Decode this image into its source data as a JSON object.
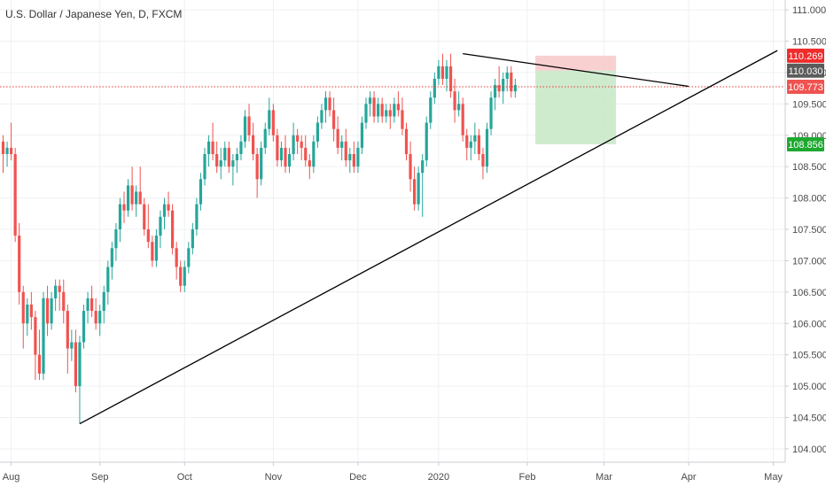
{
  "header": {
    "title": "U.S. Dollar / Japanese Yen, D, FXCM"
  },
  "colors": {
    "up": "#26a69a",
    "down": "#ef5350",
    "grid": "#eef0f3",
    "axis": "#c8ccd3",
    "trendline": "#000000",
    "current_line": "#e53935",
    "stop_zone": "#f8c8c8",
    "target_zone": "#c7e8c6",
    "entry_badge": "#5b5b5b",
    "stop_badge": "#ef2c2c",
    "target_badge": "#1ea830",
    "current_badge": "#ef5350"
  },
  "chart_data": {
    "type": "candlestick",
    "title": "U.S. Dollar / Japanese Yen, D, FXCM",
    "ylim": [
      103.9,
      111.1
    ],
    "y_ticks": [
      "104.000",
      "104.500",
      "105.000",
      "105.500",
      "106.000",
      "106.500",
      "107.000",
      "107.500",
      "108.000",
      "108.500",
      "109.000",
      "109.500",
      "110.000",
      "110.500",
      "111.000"
    ],
    "x_ticks": [
      "Aug",
      "Sep",
      "Oct",
      "Nov",
      "Dec",
      "2020",
      "Feb",
      "Mar",
      "Apr",
      "May"
    ],
    "price_labels": {
      "stop": "110.269",
      "entry": "110.030",
      "current": "109.773",
      "target": "108.856"
    },
    "candles": [
      [
        108.9,
        109.0,
        108.4,
        108.7
      ],
      [
        108.7,
        108.9,
        108.5,
        108.8
      ],
      [
        108.8,
        109.2,
        108.6,
        108.7
      ],
      [
        108.7,
        108.8,
        107.3,
        107.4
      ],
      [
        107.4,
        107.6,
        106.3,
        106.5
      ],
      [
        106.5,
        106.6,
        105.6,
        106.0
      ],
      [
        106.0,
        106.4,
        105.8,
        106.3
      ],
      [
        106.3,
        106.5,
        105.9,
        106.1
      ],
      [
        106.1,
        106.2,
        105.1,
        105.5
      ],
      [
        105.5,
        105.9,
        105.1,
        105.2
      ],
      [
        105.2,
        106.5,
        105.1,
        106.4
      ],
      [
        106.4,
        106.6,
        105.8,
        106.0
      ],
      [
        106.0,
        106.5,
        105.9,
        106.4
      ],
      [
        106.4,
        106.7,
        106.2,
        106.6
      ],
      [
        106.6,
        106.7,
        106.2,
        106.5
      ],
      [
        106.5,
        106.7,
        106.0,
        106.2
      ],
      [
        106.2,
        106.3,
        105.2,
        105.6
      ],
      [
        105.6,
        105.9,
        105.4,
        105.7
      ],
      [
        105.7,
        105.9,
        104.9,
        105.0
      ],
      [
        105.0,
        105.8,
        104.4,
        105.7
      ],
      [
        105.7,
        106.3,
        105.6,
        106.2
      ],
      [
        106.2,
        106.5,
        106.0,
        106.4
      ],
      [
        106.4,
        106.6,
        106.1,
        106.2
      ],
      [
        106.2,
        106.4,
        105.9,
        106.0
      ],
      [
        106.0,
        106.3,
        105.8,
        106.2
      ],
      [
        106.2,
        106.6,
        106.0,
        106.5
      ],
      [
        106.5,
        107.0,
        106.3,
        106.9
      ],
      [
        106.9,
        107.3,
        106.7,
        107.2
      ],
      [
        107.2,
        107.6,
        107.0,
        107.5
      ],
      [
        107.5,
        108.0,
        107.3,
        107.9
      ],
      [
        107.9,
        108.1,
        107.6,
        107.8
      ],
      [
        107.8,
        108.3,
        107.7,
        108.2
      ],
      [
        108.2,
        108.5,
        107.8,
        107.9
      ],
      [
        107.9,
        108.2,
        107.7,
        108.1
      ],
      [
        108.1,
        108.5,
        107.9,
        107.9
      ],
      [
        107.9,
        108.0,
        107.4,
        107.5
      ],
      [
        107.5,
        107.9,
        107.2,
        107.3
      ],
      [
        107.3,
        107.4,
        106.9,
        107.0
      ],
      [
        107.0,
        107.5,
        106.9,
        107.4
      ],
      [
        107.4,
        107.8,
        107.2,
        107.7
      ],
      [
        107.7,
        108.0,
        107.5,
        107.9
      ],
      [
        107.9,
        108.1,
        107.7,
        107.8
      ],
      [
        107.8,
        107.9,
        107.1,
        107.2
      ],
      [
        107.2,
        107.3,
        106.7,
        106.9
      ],
      [
        106.9,
        107.0,
        106.5,
        106.6
      ],
      [
        106.6,
        107.0,
        106.5,
        106.9
      ],
      [
        106.9,
        107.3,
        106.8,
        107.2
      ],
      [
        107.2,
        107.6,
        107.1,
        107.5
      ],
      [
        107.5,
        108.0,
        107.4,
        107.9
      ],
      [
        107.9,
        108.4,
        107.8,
        108.3
      ],
      [
        108.3,
        108.8,
        108.2,
        108.7
      ],
      [
        108.7,
        109.0,
        108.5,
        108.9
      ],
      [
        108.9,
        109.2,
        108.6,
        108.7
      ],
      [
        108.7,
        108.9,
        108.4,
        108.5
      ],
      [
        108.5,
        108.8,
        108.3,
        108.6
      ],
      [
        108.6,
        108.9,
        108.5,
        108.8
      ],
      [
        108.8,
        108.9,
        108.4,
        108.5
      ],
      [
        108.5,
        108.7,
        108.2,
        108.6
      ],
      [
        108.6,
        108.8,
        108.4,
        108.7
      ],
      [
        108.7,
        109.0,
        108.6,
        108.9
      ],
      [
        108.9,
        109.4,
        108.8,
        109.3
      ],
      [
        109.3,
        109.5,
        108.9,
        109.0
      ],
      [
        109.0,
        109.2,
        108.6,
        108.7
      ],
      [
        108.7,
        108.8,
        108.0,
        108.3
      ],
      [
        108.3,
        108.9,
        108.2,
        108.8
      ],
      [
        108.8,
        109.2,
        108.7,
        109.1
      ],
      [
        109.1,
        109.6,
        109.0,
        109.4
      ],
      [
        109.4,
        109.5,
        108.9,
        109.0
      ],
      [
        109.0,
        109.1,
        108.5,
        108.6
      ],
      [
        108.6,
        108.9,
        108.5,
        108.8
      ],
      [
        108.8,
        109.0,
        108.4,
        108.5
      ],
      [
        108.5,
        108.8,
        108.4,
        108.7
      ],
      [
        108.7,
        109.2,
        108.6,
        109.0
      ],
      [
        109.0,
        109.1,
        108.7,
        108.9
      ],
      [
        108.9,
        109.0,
        108.6,
        108.8
      ],
      [
        108.8,
        109.0,
        108.5,
        108.6
      ],
      [
        108.6,
        108.7,
        108.3,
        108.5
      ],
      [
        108.5,
        109.0,
        108.4,
        108.9
      ],
      [
        108.9,
        109.3,
        108.8,
        109.2
      ],
      [
        109.2,
        109.5,
        109.1,
        109.4
      ],
      [
        109.4,
        109.7,
        109.2,
        109.6
      ],
      [
        109.6,
        109.7,
        109.3,
        109.4
      ],
      [
        109.4,
        109.6,
        108.9,
        109.1
      ],
      [
        109.1,
        109.3,
        108.7,
        108.8
      ],
      [
        108.8,
        109.0,
        108.6,
        108.9
      ],
      [
        108.9,
        109.1,
        108.5,
        108.6
      ],
      [
        108.6,
        108.8,
        108.4,
        108.7
      ],
      [
        108.7,
        108.9,
        108.4,
        108.5
      ],
      [
        108.5,
        108.9,
        108.4,
        108.8
      ],
      [
        108.8,
        109.3,
        108.7,
        109.2
      ],
      [
        109.2,
        109.6,
        109.1,
        109.5
      ],
      [
        109.5,
        109.7,
        109.3,
        109.6
      ],
      [
        109.6,
        109.7,
        109.2,
        109.3
      ],
      [
        109.3,
        109.6,
        109.2,
        109.5
      ],
      [
        109.5,
        109.6,
        109.2,
        109.3
      ],
      [
        109.3,
        109.5,
        109.2,
        109.4
      ],
      [
        109.4,
        109.5,
        109.1,
        109.3
      ],
      [
        109.3,
        109.6,
        109.2,
        109.5
      ],
      [
        109.5,
        109.7,
        109.3,
        109.4
      ],
      [
        109.4,
        109.6,
        109.0,
        109.1
      ],
      [
        109.1,
        109.2,
        108.6,
        108.7
      ],
      [
        108.7,
        108.9,
        108.1,
        108.3
      ],
      [
        108.3,
        108.5,
        107.8,
        107.9
      ],
      [
        107.9,
        108.5,
        107.8,
        108.4
      ],
      [
        108.4,
        108.7,
        107.7,
        108.6
      ],
      [
        108.6,
        109.3,
        108.5,
        109.2
      ],
      [
        109.2,
        109.7,
        109.1,
        109.6
      ],
      [
        109.6,
        110.0,
        109.5,
        109.9
      ],
      [
        109.9,
        110.2,
        109.8,
        110.1
      ],
      [
        110.1,
        110.3,
        109.8,
        109.9
      ],
      [
        109.9,
        110.2,
        109.7,
        110.1
      ],
      [
        110.1,
        110.3,
        109.6,
        109.7
      ],
      [
        109.7,
        109.9,
        109.2,
        109.4
      ],
      [
        109.4,
        109.7,
        109.3,
        109.5
      ],
      [
        109.5,
        109.6,
        108.9,
        109.0
      ],
      [
        109.0,
        109.1,
        108.6,
        108.8
      ],
      [
        108.8,
        109.0,
        108.6,
        108.9
      ],
      [
        108.9,
        109.2,
        108.7,
        109.0
      ],
      [
        109.0,
        109.1,
        108.6,
        108.7
      ],
      [
        108.7,
        108.8,
        108.3,
        108.5
      ],
      [
        108.5,
        109.2,
        108.4,
        109.1
      ],
      [
        109.1,
        109.7,
        109.0,
        109.6
      ],
      [
        109.6,
        109.9,
        109.4,
        109.8
      ],
      [
        109.8,
        110.1,
        109.6,
        109.7
      ],
      [
        109.7,
        110.0,
        109.5,
        109.9
      ],
      [
        109.9,
        110.1,
        109.7,
        110.0
      ],
      [
        110.0,
        110.1,
        109.6,
        109.7
      ],
      [
        109.7,
        109.9,
        109.6,
        109.8
      ]
    ],
    "trendlines": [
      {
        "name": "ascending-support",
        "from": {
          "bar": 19,
          "price": 104.4
        },
        "to": {
          "bar": 192,
          "price": 110.35
        }
      },
      {
        "name": "descending-resistance",
        "from": {
          "bar": 114,
          "price": 110.3
        },
        "to": {
          "bar": 170,
          "price": 109.78
        }
      }
    ],
    "position": {
      "from_bar": 132,
      "to_bar": 152,
      "stop": 110.269,
      "entry": 110.03,
      "target": 108.856
    },
    "current_price": 109.773
  }
}
